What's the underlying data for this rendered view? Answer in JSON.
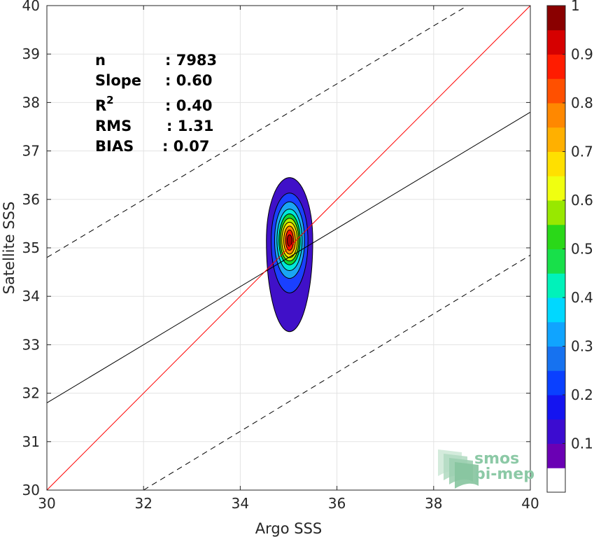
{
  "chart_data": {
    "type": "contour-density-scatter",
    "xlabel": "Argo SSS",
    "ylabel": "Satellite SSS",
    "xlim": [
      30,
      40
    ],
    "ylim": [
      30,
      40
    ],
    "xticks": [
      "30",
      "32",
      "34",
      "36",
      "38",
      "40"
    ],
    "yticks": [
      "30",
      "31",
      "32",
      "33",
      "34",
      "35",
      "36",
      "37",
      "38",
      "39",
      "40"
    ],
    "grid": true,
    "stats": [
      {
        "label": "n",
        "sep": ": 7983"
      },
      {
        "label": "Slope",
        "sep": ": 0.60"
      },
      {
        "label": "R",
        "sup": "2",
        "sep": ": 0.40"
      },
      {
        "label": "RMS",
        "sep": ": 1.31"
      },
      {
        "label": "BIAS",
        "sep": ": 0.07"
      }
    ],
    "identity_line": {
      "color": "#ff0000",
      "points": [
        [
          30,
          30
        ],
        [
          40,
          40
        ]
      ]
    },
    "regression_line": {
      "color": "#000000",
      "points": [
        [
          30,
          31.8
        ],
        [
          40,
          37.8
        ]
      ]
    },
    "bound_lines": [
      {
        "style": "dashed",
        "points": [
          [
            30,
            34.8
          ],
          [
            38.7,
            40
          ]
        ]
      },
      {
        "style": "dashed",
        "points": [
          [
            32,
            30
          ],
          [
            40,
            34.85
          ]
        ]
      }
    ],
    "contour_center": [
      35.02,
      35.15
    ],
    "contour_levels": [
      {
        "level": 0.1,
        "color": "#4010c8",
        "rx": 0.48,
        "ry_top": 1.3,
        "ry_bottom": 1.88
      },
      {
        "level": 0.2,
        "color": "#1a40ff",
        "rx": 0.38,
        "ry_top": 0.98,
        "ry_bottom": 1.08
      },
      {
        "level": 0.3,
        "color": "#1aa6f4",
        "rx": 0.31,
        "ry_top": 0.8,
        "ry_bottom": 0.78
      },
      {
        "level": 0.4,
        "color": "#00e8d8",
        "rx": 0.26,
        "ry_top": 0.65,
        "ry_bottom": 0.62
      },
      {
        "level": 0.5,
        "color": "#12d432",
        "rx": 0.22,
        "ry_top": 0.55,
        "ry_bottom": 0.5
      },
      {
        "level": 0.6,
        "color": "#b0f000",
        "rx": 0.19,
        "ry_top": 0.46,
        "ry_bottom": 0.42
      },
      {
        "level": 0.7,
        "color": "#ffe000",
        "rx": 0.16,
        "ry_top": 0.38,
        "ry_bottom": 0.35
      },
      {
        "level": 0.8,
        "color": "#ff8a00",
        "rx": 0.12,
        "ry_top": 0.3,
        "ry_bottom": 0.28
      },
      {
        "level": 0.9,
        "color": "#ff1800",
        "rx": 0.08,
        "ry_top": 0.22,
        "ry_bottom": 0.2
      },
      {
        "level": 1.0,
        "color": "#b00000",
        "rx": 0.05,
        "ry_top": 0.12,
        "ry_bottom": 0.12
      }
    ],
    "colorbar": {
      "ticks": [
        "0.1",
        "0.2",
        "0.3",
        "0.4",
        "0.5",
        "0.6",
        "0.7",
        "0.8",
        "0.9",
        "1"
      ],
      "colors": [
        "#ffffff",
        "#6a00b4",
        "#3c0cd0",
        "#1414f0",
        "#0a40ff",
        "#1672f0",
        "#10a4ff",
        "#00d8ff",
        "#00f2ba",
        "#18e04a",
        "#2ad818",
        "#98e800",
        "#f0ff10",
        "#ffe000",
        "#ffb000",
        "#ff8800",
        "#ff5000",
        "#ff1c00",
        "#d60000",
        "#8a0000"
      ]
    }
  },
  "logo": {
    "line1": "smos",
    "line2": "pi-mep"
  }
}
